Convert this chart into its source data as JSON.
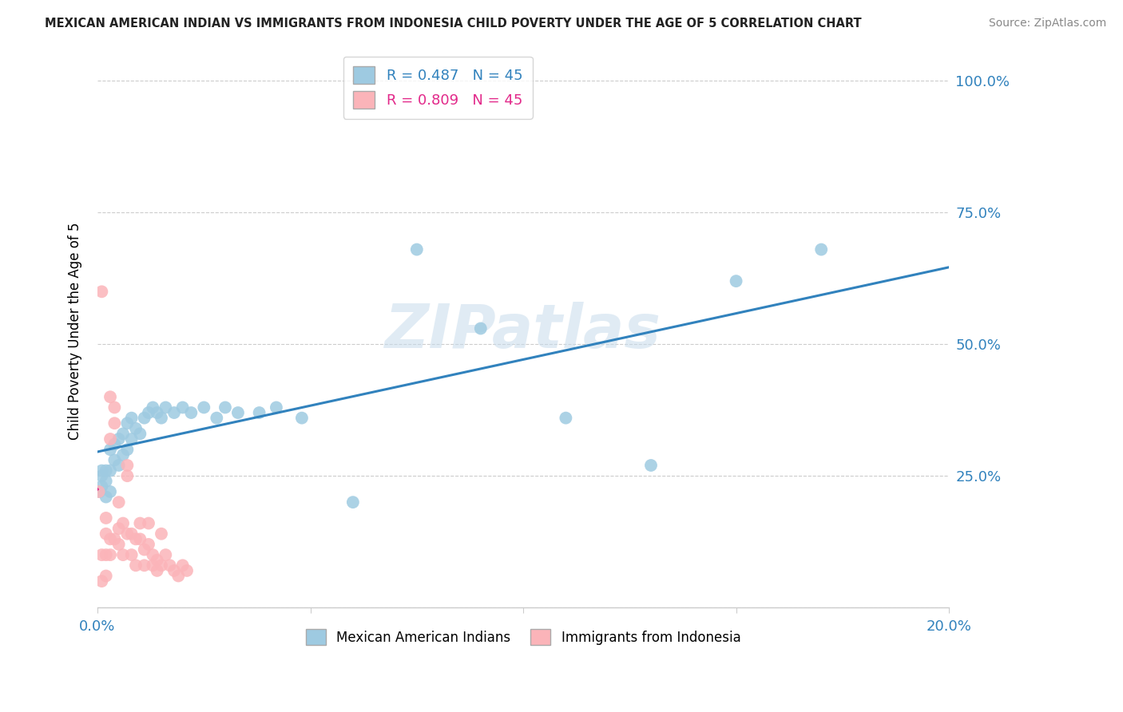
{
  "title": "MEXICAN AMERICAN INDIAN VS IMMIGRANTS FROM INDONESIA CHILD POVERTY UNDER THE AGE OF 5 CORRELATION CHART",
  "source": "Source: ZipAtlas.com",
  "ylabel": "Child Poverty Under the Age of 5",
  "xlim": [
    0.0,
    0.2
  ],
  "ylim": [
    0.0,
    1.05
  ],
  "yticks": [
    0.0,
    0.25,
    0.5,
    0.75,
    1.0
  ],
  "ytick_labels": [
    "",
    "25.0%",
    "50.0%",
    "75.0%",
    "100.0%"
  ],
  "xticks": [
    0.0,
    0.05,
    0.1,
    0.15,
    0.2
  ],
  "xtick_labels": [
    "0.0%",
    "",
    "",
    "",
    "20.0%"
  ],
  "legend_blue_label": "R = 0.487   N = 45",
  "legend_pink_label": "R = 0.809   N = 45",
  "blue_color": "#9ecae1",
  "pink_color": "#fbb4b9",
  "blue_line_color": "#3182bd",
  "pink_line_color": "#e2298a",
  "watermark": "ZIPatlas",
  "blue_scatter_x": [
    0.0005,
    0.001,
    0.001,
    0.001,
    0.002,
    0.002,
    0.002,
    0.003,
    0.003,
    0.003,
    0.004,
    0.004,
    0.005,
    0.005,
    0.006,
    0.006,
    0.007,
    0.007,
    0.008,
    0.008,
    0.009,
    0.01,
    0.011,
    0.012,
    0.013,
    0.014,
    0.015,
    0.016,
    0.018,
    0.02,
    0.022,
    0.025,
    0.028,
    0.03,
    0.033,
    0.038,
    0.042,
    0.048,
    0.06,
    0.075,
    0.09,
    0.11,
    0.13,
    0.15,
    0.17
  ],
  "blue_scatter_y": [
    0.22,
    0.23,
    0.25,
    0.26,
    0.21,
    0.24,
    0.26,
    0.22,
    0.26,
    0.3,
    0.28,
    0.31,
    0.27,
    0.32,
    0.29,
    0.33,
    0.3,
    0.35,
    0.32,
    0.36,
    0.34,
    0.33,
    0.36,
    0.37,
    0.38,
    0.37,
    0.36,
    0.38,
    0.37,
    0.38,
    0.37,
    0.38,
    0.36,
    0.38,
    0.37,
    0.37,
    0.38,
    0.36,
    0.2,
    0.68,
    0.53,
    0.36,
    0.27,
    0.62,
    0.68
  ],
  "pink_scatter_x": [
    0.0003,
    0.001,
    0.001,
    0.001,
    0.002,
    0.002,
    0.002,
    0.002,
    0.003,
    0.003,
    0.003,
    0.003,
    0.004,
    0.004,
    0.004,
    0.005,
    0.005,
    0.005,
    0.006,
    0.006,
    0.007,
    0.007,
    0.007,
    0.008,
    0.008,
    0.009,
    0.009,
    0.01,
    0.01,
    0.011,
    0.011,
    0.012,
    0.012,
    0.013,
    0.013,
    0.014,
    0.014,
    0.015,
    0.015,
    0.016,
    0.017,
    0.018,
    0.019,
    0.02,
    0.021
  ],
  "pink_scatter_y": [
    0.22,
    0.6,
    0.1,
    0.05,
    0.17,
    0.14,
    0.1,
    0.06,
    0.4,
    0.32,
    0.13,
    0.1,
    0.38,
    0.35,
    0.13,
    0.2,
    0.15,
    0.12,
    0.16,
    0.1,
    0.27,
    0.25,
    0.14,
    0.14,
    0.1,
    0.13,
    0.08,
    0.16,
    0.13,
    0.11,
    0.08,
    0.16,
    0.12,
    0.1,
    0.08,
    0.09,
    0.07,
    0.14,
    0.08,
    0.1,
    0.08,
    0.07,
    0.06,
    0.08,
    0.07
  ],
  "pink_line_xmin": 0.0,
  "pink_line_xmax": 0.0085
}
